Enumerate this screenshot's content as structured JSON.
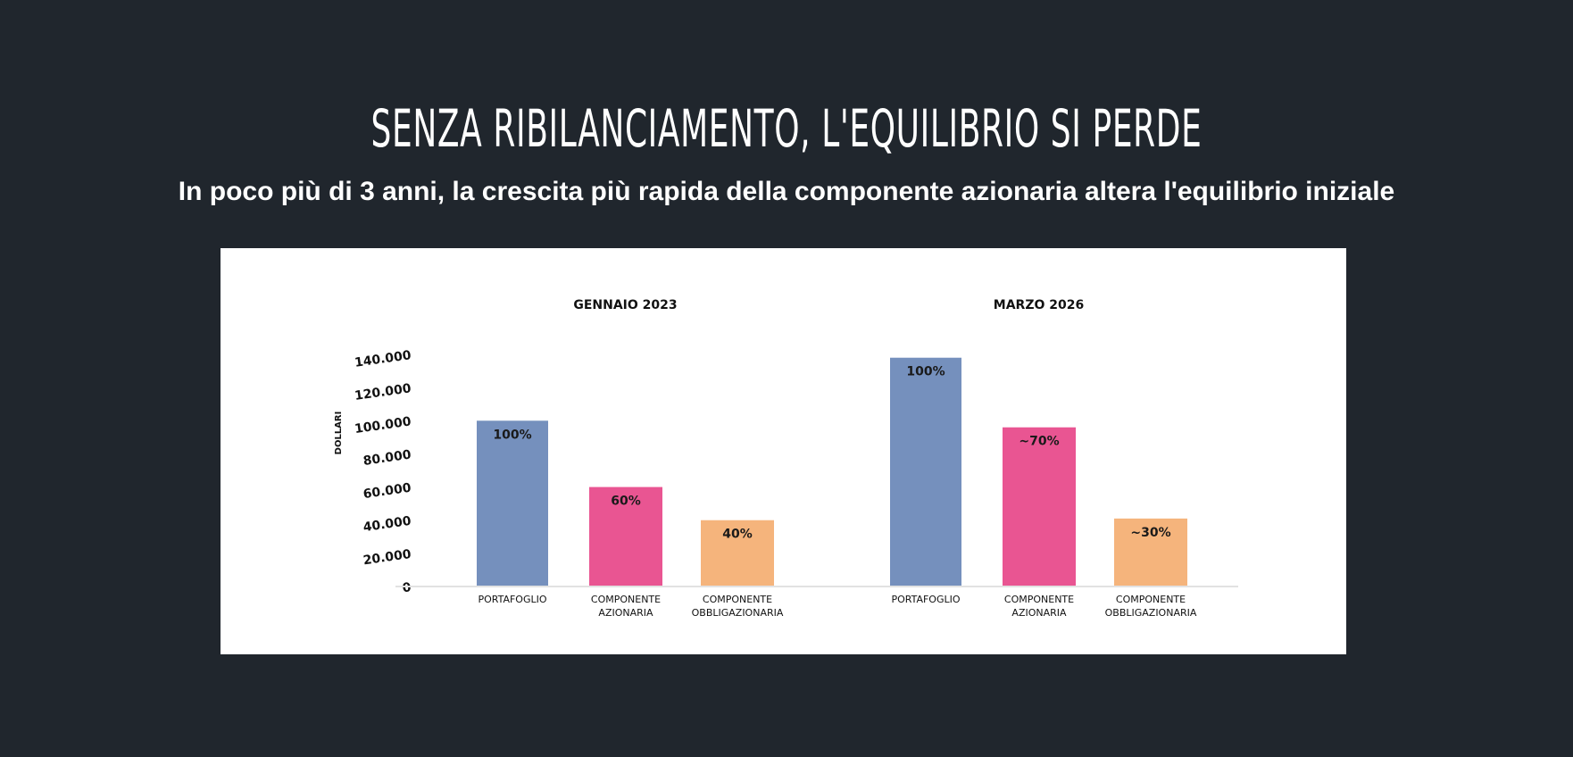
{
  "header": {
    "title": "SENZA RIBILANCIAMENTO, L'EQUILIBRIO SI PERDE",
    "subtitle": "In poco più di 3 anni, la crescita più rapida della componente azionaria altera l'equilibrio iniziale"
  },
  "chart_data": {
    "type": "bar",
    "ylabel": "DOLLARI",
    "ylim": [
      0,
      140000
    ],
    "yticks": [
      "0",
      "20.000",
      "40.000",
      "60.000",
      "80.000",
      "100.000",
      "120.000",
      "140.000"
    ],
    "ytick_values": [
      0,
      20000,
      40000,
      60000,
      80000,
      100000,
      120000,
      140000
    ],
    "grid": false,
    "legend": "none",
    "panels": [
      {
        "title": "GENNAIO 2023",
        "bars": [
          {
            "category": [
              "PORTAFOGLIO"
            ],
            "value": 100000,
            "label": "100%",
            "color": "#7590bd"
          },
          {
            "category": [
              "COMPONENTE",
              "AZIONARIA"
            ],
            "value": 60000,
            "label": "60%",
            "color": "#e95592"
          },
          {
            "category": [
              "COMPONENTE",
              "OBBLIGAZIONARIA"
            ],
            "value": 40000,
            "label": "40%",
            "color": "#f5b47c"
          }
        ]
      },
      {
        "title": "MARZO 2026",
        "bars": [
          {
            "category": [
              "PORTAFOGLIO"
            ],
            "value": 138000,
            "label": "100%",
            "color": "#7590bd"
          },
          {
            "category": [
              "COMPONENTE",
              "AZIONARIA"
            ],
            "value": 96000,
            "label": "~70%",
            "color": "#e95592"
          },
          {
            "category": [
              "COMPONENTE",
              "OBBLIGAZIONARIA"
            ],
            "value": 41000,
            "label": "~30%",
            "color": "#f5b47c"
          }
        ]
      }
    ]
  }
}
